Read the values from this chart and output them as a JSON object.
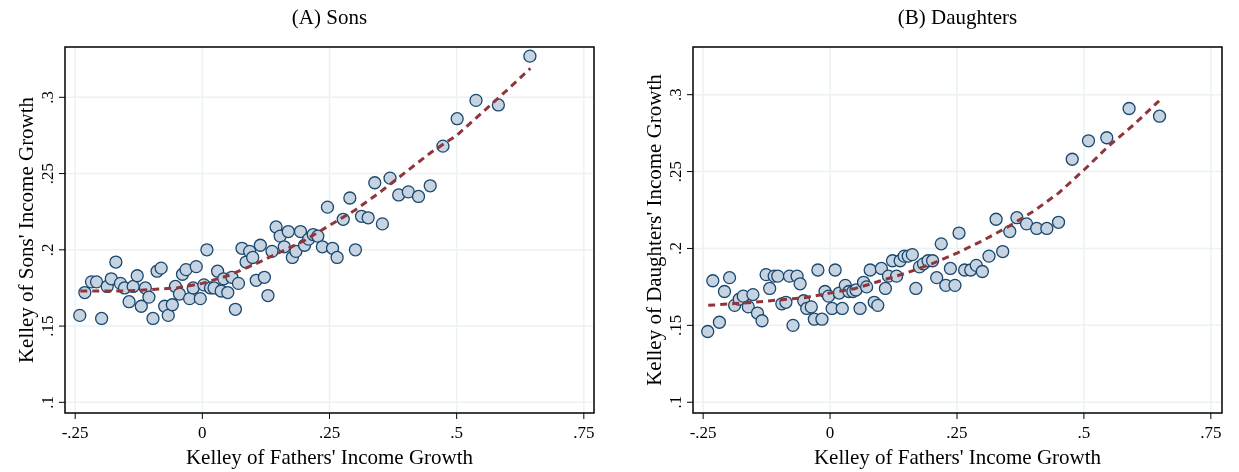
{
  "chart_data": [
    {
      "type": "scatter",
      "title": "(A) Sons",
      "xlabel": "Kelley of Fathers' Income Growth",
      "ylabel": "Kelley of Sons' Income Growth",
      "xlim": [
        -0.27,
        0.77
      ],
      "ylim": [
        0.093,
        0.333
      ],
      "xticks": [
        {
          "value": -0.25,
          "label": "-.25"
        },
        0,
        {
          "value": 0.25,
          "label": ".25"
        },
        {
          "value": 0.5,
          "label": ".5"
        },
        {
          "value": 0.75,
          "label": ".75"
        }
      ],
      "yticks": [
        {
          "value": 0.1,
          "label": ".1"
        },
        {
          "value": 0.15,
          "label": ".15"
        },
        {
          "value": 0.2,
          "label": ".2"
        },
        {
          "value": 0.25,
          "label": ".25"
        },
        {
          "value": 0.3,
          "label": ".3"
        }
      ],
      "grid": true,
      "series": [
        {
          "marker": "circle",
          "color": "#c6d3e0",
          "x": [
            -0.241,
            -0.231,
            -0.218,
            -0.208,
            -0.198,
            -0.187,
            -0.179,
            -0.17,
            -0.161,
            -0.153,
            -0.144,
            -0.136,
            -0.128,
            -0.12,
            -0.112,
            -0.105,
            -0.097,
            -0.089,
            -0.081,
            -0.074,
            -0.067,
            -0.059,
            -0.053,
            -0.045,
            -0.039,
            -0.032,
            -0.025,
            -0.018,
            -0.012,
            -0.004,
            0.003,
            0.009,
            0.016,
            0.023,
            0.03,
            0.037,
            0.042,
            0.05,
            0.058,
            0.065,
            0.071,
            0.078,
            0.086,
            0.093,
            0.099,
            0.106,
            0.114,
            0.122,
            0.129,
            0.137,
            0.145,
            0.153,
            0.161,
            0.169,
            0.177,
            0.184,
            0.193,
            0.201,
            0.209,
            0.218,
            0.227,
            0.236,
            0.246,
            0.256,
            0.265,
            0.277,
            0.29,
            0.301,
            0.313,
            0.326,
            0.339,
            0.354,
            0.369,
            0.386,
            0.405,
            0.425,
            0.448,
            0.473,
            0.501,
            0.538,
            0.582,
            0.644
          ],
          "values": [
            0.157,
            0.172,
            0.179,
            0.179,
            0.155,
            0.176,
            0.181,
            0.192,
            0.178,
            0.175,
            0.166,
            0.176,
            0.183,
            0.163,
            0.175,
            0.169,
            0.155,
            0.186,
            0.188,
            0.163,
            0.157,
            0.164,
            0.176,
            0.171,
            0.184,
            0.187,
            0.168,
            0.175,
            0.189,
            0.168,
            0.177,
            0.2,
            0.175,
            0.175,
            0.186,
            0.173,
            0.181,
            0.172,
            0.182,
            0.161,
            0.178,
            0.201,
            0.192,
            0.199,
            0.195,
            0.18,
            0.203,
            0.182,
            0.17,
            0.199,
            0.215,
            0.209,
            0.202,
            0.212,
            0.195,
            0.199,
            0.212,
            0.203,
            0.207,
            0.21,
            0.209,
            0.202,
            0.228,
            0.201,
            0.195,
            0.22,
            0.234,
            0.2,
            0.222,
            0.221,
            0.244,
            0.217,
            0.247,
            0.236,
            0.238,
            0.235,
            0.242,
            0.268,
            0.286,
            0.298,
            0.295,
            0.327
          ]
        },
        {
          "type": "line",
          "marker": "none",
          "line_style": "dashed",
          "color": "#90353b",
          "x": [
            -0.24,
            -0.15,
            -0.05,
            0,
            0.05,
            0.1,
            0.15,
            0.2,
            0.25,
            0.3,
            0.35,
            0.4,
            0.45,
            0.5,
            0.55,
            0.6,
            0.645
          ],
          "values": [
            0.173,
            0.173,
            0.175,
            0.178,
            0.183,
            0.19,
            0.198,
            0.206,
            0.216,
            0.226,
            0.238,
            0.251,
            0.264,
            0.275,
            0.29,
            0.305,
            0.319
          ]
        }
      ]
    },
    {
      "type": "scatter",
      "title": "(B) Daughters",
      "xlabel": "Kelley of Fathers' Income Growth",
      "ylabel": "Kelley of Daughters' Income Growth",
      "xlim": [
        -0.27,
        0.772
      ],
      "ylim": [
        0.093,
        0.331
      ],
      "xticks": [
        {
          "value": -0.25,
          "label": "-.25"
        },
        0,
        {
          "value": 0.25,
          "label": ".25"
        },
        {
          "value": 0.5,
          "label": ".5"
        },
        {
          "value": 0.75,
          "label": ".75"
        }
      ],
      "yticks": [
        {
          "value": 0.1,
          "label": ".1"
        },
        {
          "value": 0.15,
          "label": ".15"
        },
        {
          "value": 0.2,
          "label": ".2"
        },
        {
          "value": 0.25,
          "label": ".25"
        },
        {
          "value": 0.3,
          "label": ".3"
        }
      ],
      "grid": true,
      "series": [
        {
          "marker": "circle",
          "color": "#c6d3e0",
          "x": [
            -0.241,
            -0.231,
            -0.218,
            -0.208,
            -0.198,
            -0.188,
            -0.179,
            -0.171,
            -0.161,
            -0.152,
            -0.143,
            -0.134,
            -0.126,
            -0.119,
            -0.11,
            -0.103,
            -0.095,
            -0.087,
            -0.08,
            -0.073,
            -0.065,
            -0.059,
            -0.052,
            -0.046,
            -0.037,
            -0.031,
            -0.024,
            -0.016,
            -0.01,
            -0.003,
            0.004,
            0.01,
            0.018,
            0.024,
            0.03,
            0.037,
            0.045,
            0.051,
            0.059,
            0.066,
            0.072,
            0.079,
            0.087,
            0.094,
            0.101,
            0.109,
            0.115,
            0.123,
            0.131,
            0.138,
            0.146,
            0.154,
            0.162,
            0.169,
            0.176,
            0.184,
            0.193,
            0.202,
            0.21,
            0.219,
            0.228,
            0.237,
            0.246,
            0.254,
            0.265,
            0.277,
            0.288,
            0.3,
            0.313,
            0.327,
            0.34,
            0.354,
            0.368,
            0.387,
            0.407,
            0.427,
            0.45,
            0.477,
            0.509,
            0.545,
            0.589,
            0.649
          ],
          "values": [
            0.146,
            0.179,
            0.152,
            0.172,
            0.181,
            0.163,
            0.167,
            0.169,
            0.162,
            0.17,
            0.158,
            0.153,
            0.183,
            0.174,
            0.182,
            0.182,
            0.164,
            0.165,
            0.182,
            0.15,
            0.182,
            0.177,
            0.166,
            0.161,
            0.162,
            0.154,
            0.186,
            0.154,
            0.172,
            0.169,
            0.161,
            0.186,
            0.171,
            0.161,
            0.176,
            0.172,
            0.172,
            0.173,
            0.161,
            0.178,
            0.175,
            0.186,
            0.165,
            0.163,
            0.187,
            0.174,
            0.182,
            0.192,
            0.182,
            0.192,
            0.195,
            0.195,
            0.196,
            0.174,
            0.188,
            0.19,
            0.192,
            0.192,
            0.181,
            0.203,
            0.176,
            0.187,
            0.176,
            0.21,
            0.186,
            0.186,
            0.189,
            0.185,
            0.195,
            0.219,
            0.198,
            0.211,
            0.22,
            0.216,
            0.213,
            0.213,
            0.217,
            0.258,
            0.27,
            0.272,
            0.291,
            0.286
          ]
        },
        {
          "type": "line",
          "marker": "none",
          "line_style": "dashed",
          "color": "#90353b",
          "x": [
            -0.24,
            -0.15,
            -0.05,
            0,
            0.05,
            0.1,
            0.15,
            0.2,
            0.25,
            0.3,
            0.35,
            0.4,
            0.45,
            0.5,
            0.55,
            0.6,
            0.648
          ],
          "values": [
            0.163,
            0.165,
            0.168,
            0.171,
            0.174,
            0.179,
            0.184,
            0.19,
            0.197,
            0.205,
            0.214,
            0.224,
            0.236,
            0.251,
            0.267,
            0.281,
            0.296
          ]
        }
      ]
    }
  ]
}
